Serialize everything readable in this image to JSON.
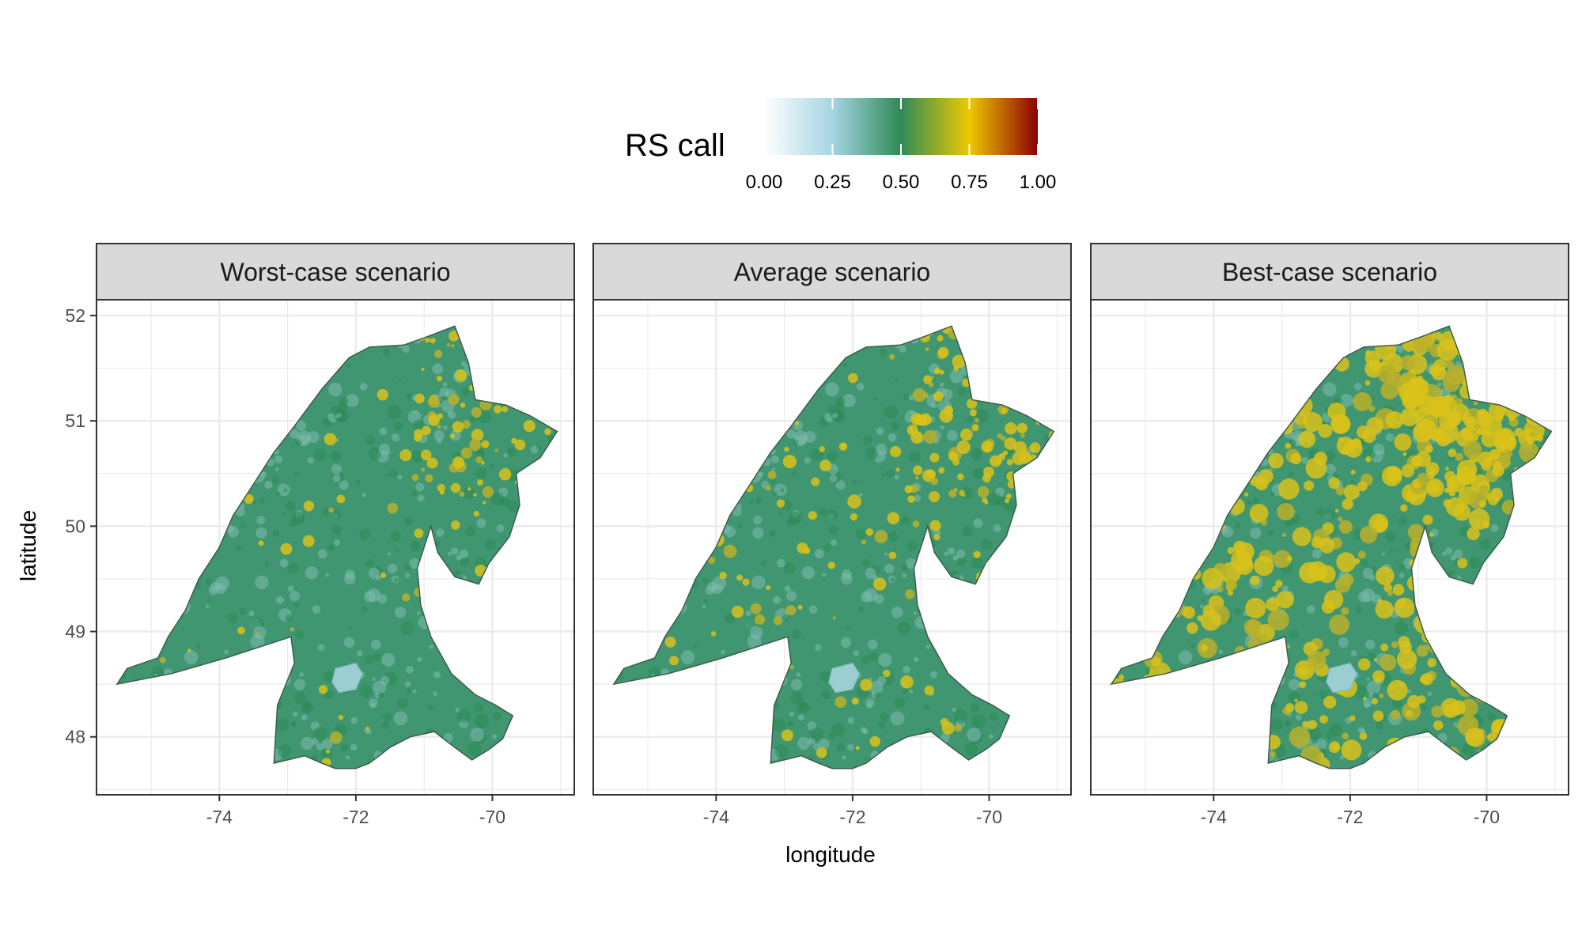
{
  "legend": {
    "title": "RS call",
    "ticks": [
      "0.00",
      "0.25",
      "0.50",
      "0.75",
      "1.00"
    ],
    "tick_values": [
      0,
      0.25,
      0.5,
      0.75,
      1.0
    ],
    "colors": [
      "#ffffff",
      "#a6d4e3",
      "#2e8b57",
      "#eec900",
      "#8b0000"
    ]
  },
  "panels": [
    {
      "title": "Worst-case scenario",
      "high_patches": 0.1
    },
    {
      "title": "Average scenario",
      "high_patches": 0.2
    },
    {
      "title": "Best-case scenario",
      "high_patches": 0.75
    }
  ],
  "axes": {
    "x_title": "longitude",
    "y_title": "latitude",
    "x_ticks": [
      "-74",
      "-72",
      "-70"
    ],
    "x_tick_values": [
      -74,
      -72,
      -70
    ],
    "y_ticks": [
      "52",
      "51",
      "50",
      "49",
      "48"
    ],
    "y_tick_values": [
      52,
      51,
      50,
      49,
      48
    ],
    "x_range": [
      -75.8,
      -68.8
    ],
    "y_range": [
      47.45,
      52.15
    ]
  },
  "region": {
    "outline": [
      [
        -75.5,
        48.5
      ],
      [
        -75.35,
        48.65
      ],
      [
        -74.9,
        48.75
      ],
      [
        -74.75,
        48.95
      ],
      [
        -74.5,
        49.2
      ],
      [
        -74.3,
        49.5
      ],
      [
        -74.0,
        49.8
      ],
      [
        -73.8,
        50.1
      ],
      [
        -73.5,
        50.4
      ],
      [
        -73.2,
        50.7
      ],
      [
        -72.9,
        50.95
      ],
      [
        -72.5,
        51.3
      ],
      [
        -72.1,
        51.6
      ],
      [
        -71.8,
        51.7
      ],
      [
        -71.3,
        51.72
      ],
      [
        -70.95,
        51.8
      ],
      [
        -70.55,
        51.9
      ],
      [
        -70.35,
        51.55
      ],
      [
        -70.25,
        51.2
      ],
      [
        -69.8,
        51.15
      ],
      [
        -69.45,
        51.05
      ],
      [
        -69.05,
        50.9
      ],
      [
        -69.3,
        50.65
      ],
      [
        -69.65,
        50.5
      ],
      [
        -69.6,
        50.2
      ],
      [
        -69.75,
        49.9
      ],
      [
        -70.05,
        49.65
      ],
      [
        -70.2,
        49.45
      ],
      [
        -70.55,
        49.52
      ],
      [
        -70.8,
        49.75
      ],
      [
        -70.9,
        50.0
      ],
      [
        -71.1,
        49.6
      ],
      [
        -71.05,
        49.25
      ],
      [
        -70.9,
        48.95
      ],
      [
        -70.6,
        48.6
      ],
      [
        -70.25,
        48.4
      ],
      [
        -69.95,
        48.3
      ],
      [
        -69.7,
        48.2
      ],
      [
        -69.85,
        47.98
      ],
      [
        -70.05,
        47.88
      ],
      [
        -70.3,
        47.78
      ],
      [
        -70.55,
        47.9
      ],
      [
        -70.85,
        48.05
      ],
      [
        -71.2,
        48.0
      ],
      [
        -71.5,
        47.9
      ],
      [
        -71.8,
        47.75
      ],
      [
        -72.0,
        47.7
      ],
      [
        -72.3,
        47.7
      ],
      [
        -72.5,
        47.75
      ],
      [
        -72.75,
        47.82
      ],
      [
        -73.2,
        47.75
      ],
      [
        -73.15,
        48.3
      ],
      [
        -72.9,
        48.7
      ],
      [
        -72.95,
        48.95
      ],
      [
        -73.9,
        48.75
      ],
      [
        -74.7,
        48.6
      ]
    ],
    "lake": [
      [
        -72.3,
        48.65
      ],
      [
        -72.0,
        48.7
      ],
      [
        -71.9,
        48.6
      ],
      [
        -72.0,
        48.45
      ],
      [
        -72.25,
        48.42
      ],
      [
        -72.35,
        48.52
      ]
    ]
  }
}
